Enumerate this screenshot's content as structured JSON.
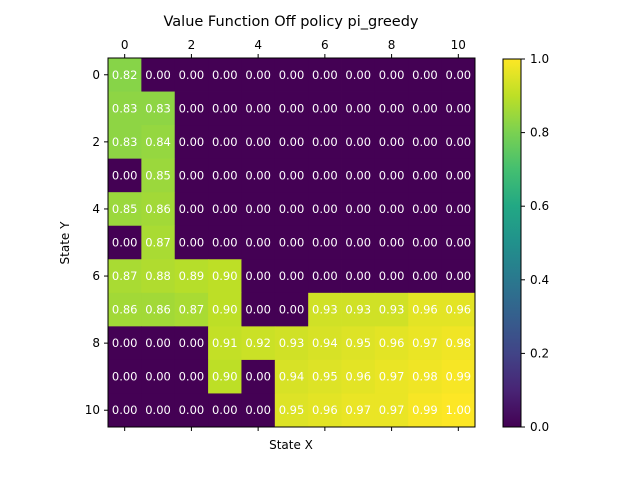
{
  "chart_data": {
    "type": "heatmap",
    "title": "Value Function Off policy pi_greedy",
    "xlabel": "State X",
    "ylabel": "State Y",
    "x_ticks": [
      0,
      2,
      4,
      6,
      8,
      10
    ],
    "y_ticks": [
      0,
      2,
      4,
      6,
      8,
      10
    ],
    "xaxis_position": "top",
    "colormap": "viridis",
    "colorbar": {
      "range": [
        0.0,
        1.0
      ],
      "ticks": [
        "0.0",
        "0.2",
        "0.4",
        "0.6",
        "0.8",
        "1.0"
      ]
    },
    "cell_label_color": "#ffffff",
    "values": [
      [
        0.82,
        0.0,
        0.0,
        0.0,
        0.0,
        0.0,
        0.0,
        0.0,
        0.0,
        0.0,
        0.0
      ],
      [
        0.83,
        0.83,
        0.0,
        0.0,
        0.0,
        0.0,
        0.0,
        0.0,
        0.0,
        0.0,
        0.0
      ],
      [
        0.83,
        0.84,
        0.0,
        0.0,
        0.0,
        0.0,
        0.0,
        0.0,
        0.0,
        0.0,
        0.0
      ],
      [
        0.0,
        0.85,
        0.0,
        0.0,
        0.0,
        0.0,
        0.0,
        0.0,
        0.0,
        0.0,
        0.0
      ],
      [
        0.85,
        0.86,
        0.0,
        0.0,
        0.0,
        0.0,
        0.0,
        0.0,
        0.0,
        0.0,
        0.0
      ],
      [
        0.0,
        0.87,
        0.0,
        0.0,
        0.0,
        0.0,
        0.0,
        0.0,
        0.0,
        0.0,
        0.0
      ],
      [
        0.87,
        0.88,
        0.89,
        0.9,
        0.0,
        0.0,
        0.0,
        0.0,
        0.0,
        0.0,
        0.0
      ],
      [
        0.86,
        0.86,
        0.87,
        0.9,
        0.0,
        0.0,
        0.93,
        0.93,
        0.93,
        0.96,
        0.96
      ],
      [
        0.0,
        0.0,
        0.0,
        0.91,
        0.92,
        0.93,
        0.94,
        0.95,
        0.96,
        0.97,
        0.98
      ],
      [
        0.0,
        0.0,
        0.0,
        0.9,
        0.0,
        0.94,
        0.95,
        0.96,
        0.97,
        0.98,
        0.99
      ],
      [
        0.0,
        0.0,
        0.0,
        0.0,
        0.0,
        0.95,
        0.96,
        0.97,
        0.97,
        0.99,
        1.0
      ]
    ]
  }
}
